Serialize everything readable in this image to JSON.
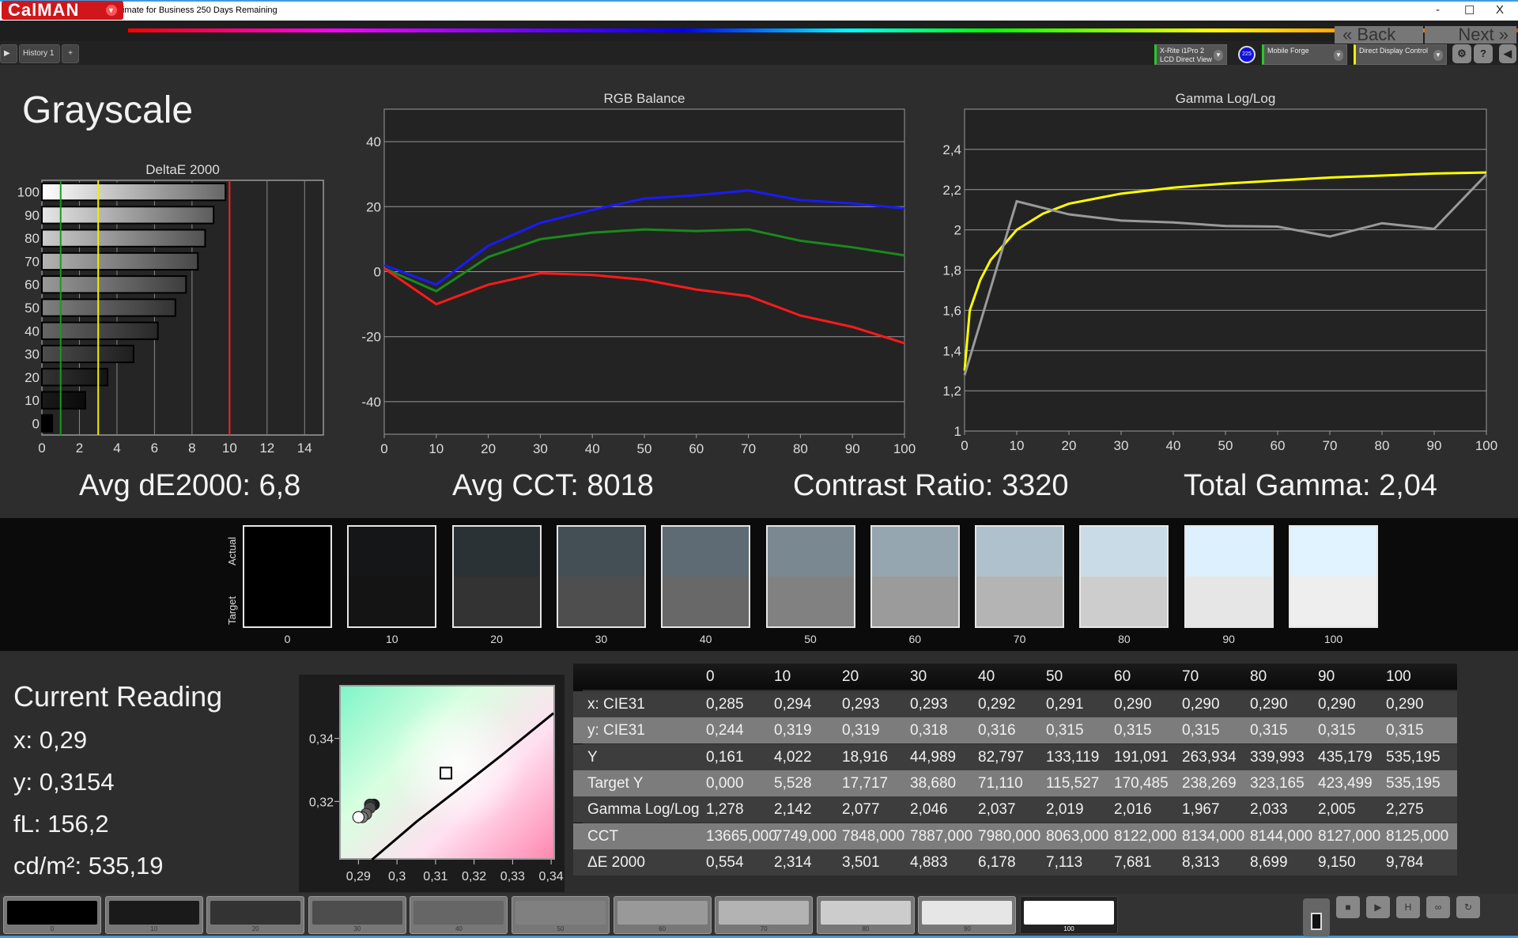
{
  "window": {
    "title": "CalMAN 2018 CalMAN Ultimate for Business 250 Days Remaining",
    "minimize": "-",
    "maximize": "☐",
    "close": "X"
  },
  "app": {
    "logo": "CalMAN",
    "tabs": [
      {
        "label": "History 1"
      },
      {
        "label": "+"
      }
    ],
    "devices": [
      {
        "line1": "X-Rite i1Pro 2",
        "line2": "LCD Direct View",
        "badge": "225",
        "accent": "#22cc22"
      },
      {
        "line1": "Mobile Forge",
        "line2": "",
        "accent": "#22cc22"
      },
      {
        "line1": "Direct Display Control",
        "line2": "",
        "accent": "#eeee00"
      }
    ],
    "right_buttons": [
      {
        "icon": "gear-icon",
        "glyph": "⚙"
      },
      {
        "icon": "help-icon",
        "glyph": "?"
      },
      {
        "icon": "collapse-icon",
        "glyph": "◀"
      }
    ]
  },
  "page": {
    "title": "Grayscale"
  },
  "summary": {
    "avg_de": "Avg dE2000: 6,8",
    "avg_cct": "Avg CCT: 8018",
    "contrast": "Contrast Ratio: 3320",
    "gamma": "Total Gamma: 2,04"
  },
  "chart_data": [
    {
      "type": "bar",
      "orientation": "horizontal",
      "title": "DeltaE 2000",
      "categories": [
        "0",
        "10",
        "20",
        "30",
        "40",
        "50",
        "60",
        "70",
        "80",
        "90",
        "100"
      ],
      "values": [
        0.554,
        2.314,
        3.501,
        4.883,
        6.178,
        7.113,
        7.681,
        8.313,
        8.699,
        9.15,
        9.784
      ],
      "xlim": [
        0,
        15
      ],
      "xticks": [
        "0",
        "2",
        "4",
        "6",
        "8",
        "10",
        "12",
        "14"
      ],
      "reference_lines": [
        {
          "value": 1,
          "color": "#1a9a1a"
        },
        {
          "value": 3,
          "color": "#eeee00"
        },
        {
          "value": 10,
          "color": "#ff2020"
        }
      ],
      "grid": true
    },
    {
      "type": "line",
      "title": "RGB Balance",
      "x": [
        0,
        10,
        20,
        30,
        40,
        50,
        60,
        70,
        80,
        90,
        100
      ],
      "ylim": [
        -50,
        50
      ],
      "yticks": [
        "40",
        "20",
        "0",
        "-20",
        "-40"
      ],
      "xticks": [
        "0",
        "10",
        "20",
        "30",
        "40",
        "50",
        "60",
        "70",
        "80",
        "90",
        "100"
      ],
      "grid": true,
      "series": [
        {
          "color": "#1a1aff",
          "values": [
            2,
            -4,
            8,
            15,
            19,
            22.5,
            23.5,
            25,
            22,
            21,
            19.5
          ]
        },
        {
          "color": "#1a8a1a",
          "values": [
            1,
            -6,
            4.5,
            10,
            12,
            13,
            12.5,
            13,
            9.5,
            7.5,
            5
          ]
        },
        {
          "color": "#ff1a1a",
          "values": [
            1,
            -10,
            -4,
            -0.5,
            -1,
            -2.5,
            -5.5,
            -7.5,
            -13.5,
            -17,
            -22
          ]
        }
      ]
    },
    {
      "type": "line",
      "title": "Gamma Log/Log",
      "ylim": [
        1,
        2.6
      ],
      "yticks": [
        "2,4",
        "2,2",
        "2",
        "1,8",
        "1,6",
        "1,4",
        "1,2",
        "1"
      ],
      "xticks": [
        "0",
        "10",
        "20",
        "30",
        "40",
        "50",
        "60",
        "70",
        "80",
        "90",
        "100"
      ],
      "grid": true,
      "series": [
        {
          "color": "#ffff00",
          "x": [
            0,
            1,
            3,
            5,
            10,
            15,
            20,
            30,
            40,
            50,
            60,
            70,
            80,
            90,
            100
          ],
          "values": [
            1.3,
            1.6,
            1.75,
            1.85,
            2.0,
            2.08,
            2.13,
            2.18,
            2.21,
            2.23,
            2.245,
            2.26,
            2.27,
            2.28,
            2.285
          ]
        },
        {
          "color": "#9a9a9a",
          "x": [
            0,
            10,
            20,
            30,
            40,
            50,
            60,
            70,
            80,
            90,
            100
          ],
          "values": [
            1.278,
            2.142,
            2.077,
            2.046,
            2.037,
            2.019,
            2.016,
            1.967,
            2.033,
            2.005,
            2.275
          ]
        }
      ]
    },
    {
      "type": "scatter",
      "title": "",
      "xlim": [
        0.285,
        0.341
      ],
      "ylim": [
        0.3015,
        0.357
      ],
      "xticks": [
        "0,29",
        "0,3",
        "0,31",
        "0,32",
        "0,33",
        "0,34"
      ],
      "yticks": [
        "0,34",
        "0,32"
      ],
      "target": {
        "x": 0.3127,
        "y": 0.329
      },
      "points_x": [
        0.285,
        0.294,
        0.293,
        0.293,
        0.292,
        0.291,
        0.29,
        0.29,
        0.29,
        0.29,
        0.29
      ],
      "points_y": [
        0.244,
        0.319,
        0.319,
        0.318,
        0.316,
        0.315,
        0.315,
        0.315,
        0.315,
        0.315,
        0.315
      ],
      "planckian": [
        [
          0.2935,
          0.3015
        ],
        [
          0.305,
          0.3135
        ],
        [
          0.3155,
          0.3235
        ],
        [
          0.3275,
          0.335
        ],
        [
          0.3406,
          0.348
        ]
      ]
    }
  ],
  "swatches": {
    "actual_label": "Actual",
    "target_label": "Target",
    "items": [
      {
        "label": "0",
        "actual": "#000000",
        "target": "#000000"
      },
      {
        "label": "10",
        "actual": "#141617",
        "target": "#141414"
      },
      {
        "label": "20",
        "actual": "#2b3236",
        "target": "#333333"
      },
      {
        "label": "30",
        "actual": "#444e55",
        "target": "#4e4e4e"
      },
      {
        "label": "40",
        "actual": "#5f6b74",
        "target": "#686868"
      },
      {
        "label": "50",
        "actual": "#7a8892",
        "target": "#818181"
      },
      {
        "label": "60",
        "actual": "#95a6b0",
        "target": "#9b9b9b"
      },
      {
        "label": "70",
        "actual": "#afc1cc",
        "target": "#b4b4b4"
      },
      {
        "label": "80",
        "actual": "#c8dbe7",
        "target": "#cdcdcd"
      },
      {
        "label": "90",
        "actual": "#dcf0fd",
        "target": "#e6e6e6"
      },
      {
        "label": "100",
        "actual": "#e0f3ff",
        "target": "#eeeeee"
      }
    ]
  },
  "reading": {
    "title": "Current Reading",
    "x": "x: 0,29",
    "y": "y: 0,3154",
    "fl": "fL: 156,2",
    "cdm2": "cd/m²: 535,19"
  },
  "table": {
    "headers": [
      "",
      "0",
      "10",
      "20",
      "30",
      "40",
      "50",
      "60",
      "70",
      "80",
      "90",
      "100"
    ],
    "rows": [
      [
        "x: CIE31",
        "0,285",
        "0,294",
        "0,293",
        "0,293",
        "0,292",
        "0,291",
        "0,290",
        "0,290",
        "0,290",
        "0,290",
        "0,290"
      ],
      [
        "y: CIE31",
        "0,244",
        "0,319",
        "0,319",
        "0,318",
        "0,316",
        "0,315",
        "0,315",
        "0,315",
        "0,315",
        "0,315",
        "0,315"
      ],
      [
        "Y",
        "0,161",
        "4,022",
        "18,916",
        "44,989",
        "82,797",
        "133,119",
        "191,091",
        "263,934",
        "339,993",
        "435,179",
        "535,195"
      ],
      [
        "Target Y",
        "0,000",
        "5,528",
        "17,717",
        "38,680",
        "71,110",
        "115,527",
        "170,485",
        "238,269",
        "323,165",
        "423,499",
        "535,195"
      ],
      [
        "Gamma Log/Log",
        "1,278",
        "2,142",
        "2,077",
        "2,046",
        "2,037",
        "2,019",
        "2,016",
        "1,967",
        "2,033",
        "2,005",
        "2,275"
      ],
      [
        "CCT",
        "13665,000",
        "7749,000",
        "7848,000",
        "7887,000",
        "7980,000",
        "8063,000",
        "8122,000",
        "8134,000",
        "8144,000",
        "8127,000",
        "8125,000"
      ],
      [
        "ΔE 2000",
        "0,554",
        "2,314",
        "3,501",
        "4,883",
        "6,178",
        "7,113",
        "7,681",
        "8,313",
        "8,699",
        "9,150",
        "9,784"
      ]
    ]
  },
  "bottom": {
    "swatches": [
      {
        "label": "0",
        "color": "#000000"
      },
      {
        "label": "10",
        "color": "#1a1a1a"
      },
      {
        "label": "20",
        "color": "#333333"
      },
      {
        "label": "30",
        "color": "#4d4d4d"
      },
      {
        "label": "40",
        "color": "#666666"
      },
      {
        "label": "50",
        "color": "#808080"
      },
      {
        "label": "60",
        "color": "#999999"
      },
      {
        "label": "70",
        "color": "#b3b3b3"
      },
      {
        "label": "80",
        "color": "#cccccc"
      },
      {
        "label": "90",
        "color": "#e6e6e6"
      },
      {
        "label": "100",
        "color": "#ffffff"
      }
    ],
    "selected": "100",
    "controls": [
      {
        "icon": "stop-icon",
        "glyph": "■"
      },
      {
        "icon": "play-icon",
        "glyph": "▶"
      },
      {
        "icon": "save-icon",
        "glyph": "H"
      },
      {
        "icon": "loop-icon",
        "glyph": "∞"
      },
      {
        "icon": "refresh-icon",
        "glyph": "↻"
      }
    ],
    "back": "Back",
    "next": "Next"
  }
}
